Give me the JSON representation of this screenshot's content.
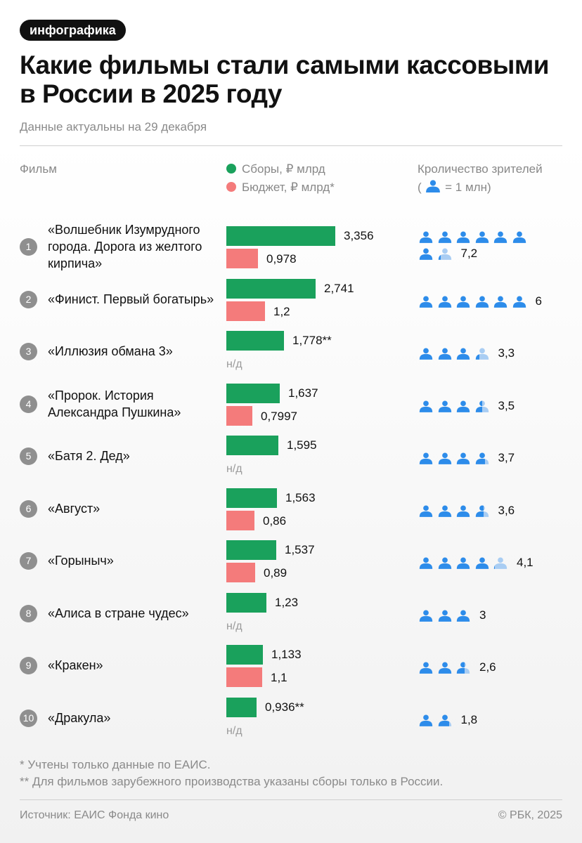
{
  "tag": "инфографика",
  "title": "Какие фильмы стали самыми кассовыми в России в 2025 году",
  "subtitle": "Данные актуальны на 29 декабря",
  "headers": {
    "film": "Фильм",
    "gross_legend": "Сборы, ₽ млрд",
    "budget_legend": "Бюджет, ₽ млрд*",
    "viewers": "Кроличество зрителей",
    "viewers_unit_open": "(",
    "viewers_unit": "= 1 млн)"
  },
  "na_label": "н/д",
  "colors": {
    "gross": "#1aa15c",
    "budget": "#f47b7b",
    "person": "#2d8cea",
    "person_light": "#a9cdf3",
    "rank": "#8f8f8f"
  },
  "chart_data": {
    "type": "bar",
    "orientation": "horizontal",
    "gross_max": 3.356,
    "series": [
      {
        "name": "Сборы, ₽ млрд",
        "key": "gross"
      },
      {
        "name": "Бюджет, ₽ млрд*",
        "key": "budget"
      },
      {
        "name": "Кроличество зрителей",
        "key": "viewers"
      }
    ],
    "rows": [
      {
        "rank": "1",
        "film": "«Волшебник Изумрудного города. Дорога из желтого кирпича»",
        "gross": 3.356,
        "gross_label": "3,356",
        "budget": 0.978,
        "budget_label": "0,978",
        "viewers": 7.2,
        "viewers_label": "7,2"
      },
      {
        "rank": "2",
        "film": "«Финист. Первый богатырь»",
        "gross": 2.741,
        "gross_label": "2,741",
        "budget": 1.2,
        "budget_label": "1,2",
        "viewers": 6,
        "viewers_label": "6"
      },
      {
        "rank": "3",
        "film": "«Иллюзия обмана 3»",
        "gross": 1.778,
        "gross_label": "1,778**",
        "budget": null,
        "budget_label": "н/д",
        "viewers": 3.3,
        "viewers_label": "3,3"
      },
      {
        "rank": "4",
        "film": "«Пророк. История Александра Пушкина»",
        "gross": 1.637,
        "gross_label": "1,637",
        "budget": 0.7997,
        "budget_label": "0,7997",
        "viewers": 3.5,
        "viewers_label": "3,5"
      },
      {
        "rank": "5",
        "film": "«Батя 2. Дед»",
        "gross": 1.595,
        "gross_label": "1,595",
        "budget": null,
        "budget_label": "н/д",
        "viewers": 3.7,
        "viewers_label": "3,7"
      },
      {
        "rank": "6",
        "film": "«Август»",
        "gross": 1.563,
        "gross_label": "1,563",
        "budget": 0.86,
        "budget_label": "0,86",
        "viewers": 3.6,
        "viewers_label": "3,6"
      },
      {
        "rank": "7",
        "film": "«Горыныч»",
        "gross": 1.537,
        "gross_label": "1,537",
        "budget": 0.89,
        "budget_label": "0,89",
        "viewers": 4.1,
        "viewers_label": "4,1"
      },
      {
        "rank": "8",
        "film": "«Алиса в стране чудес»",
        "gross": 1.23,
        "gross_label": "1,23",
        "budget": null,
        "budget_label": "н/д",
        "viewers": 3,
        "viewers_label": "3"
      },
      {
        "rank": "9",
        "film": "«Кракен»",
        "gross": 1.133,
        "gross_label": "1,133",
        "budget": 1.1,
        "budget_label": "1,1",
        "viewers": 2.6,
        "viewers_label": "2,6"
      },
      {
        "rank": "10",
        "film": "«Дракула»",
        "gross": 0.936,
        "gross_label": "0,936**",
        "budget": null,
        "budget_label": "н/д",
        "viewers": 1.8,
        "viewers_label": "1,8"
      }
    ]
  },
  "footnotes": [
    "* Учтены только данные по ЕАИС.",
    "** Для фильмов зарубежного производства указаны сборы только в России."
  ],
  "source": "Источник: ЕАИС Фонда кино",
  "copyright": "© РБК, 2025"
}
